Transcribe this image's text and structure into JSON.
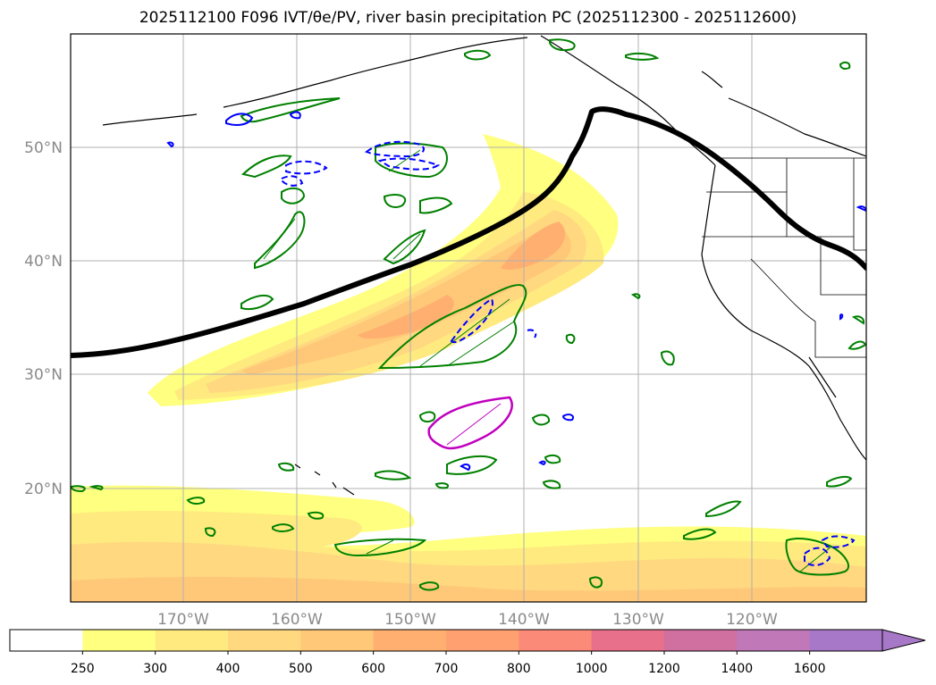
{
  "title": "2025112100 F096 IVT/θe/PV, river basin precipitation PC (2025112300 - 2025112600)",
  "map": {
    "lat_labels": [
      "50°N",
      "40°N",
      "30°N",
      "20°N"
    ],
    "lon_labels": [
      "170°W",
      "160°W",
      "150°W",
      "140°W",
      "130°W",
      "120°W"
    ],
    "gridlines": true,
    "colors": {
      "frame": "#000000",
      "grid": "#b0b0b0",
      "coast": "#000000",
      "jet_line": "#000000",
      "positive_contour": "#008000",
      "negative_contour": "#0000ff",
      "magenta_contour": "#c000c0"
    }
  },
  "colorbar": {
    "labels": [
      "250",
      "300",
      "400",
      "500",
      "600",
      "700",
      "800",
      "1000",
      "1200",
      "1400",
      "1600"
    ],
    "colors": [
      "#ffffff",
      "#ffff80",
      "#ffea80",
      "#ffd880",
      "#ffc878",
      "#ffb070",
      "#ffa070",
      "#fb8a78",
      "#e8708a",
      "#d070a0",
      "#c078b8",
      "#a878c8"
    ],
    "extend": "max"
  }
}
